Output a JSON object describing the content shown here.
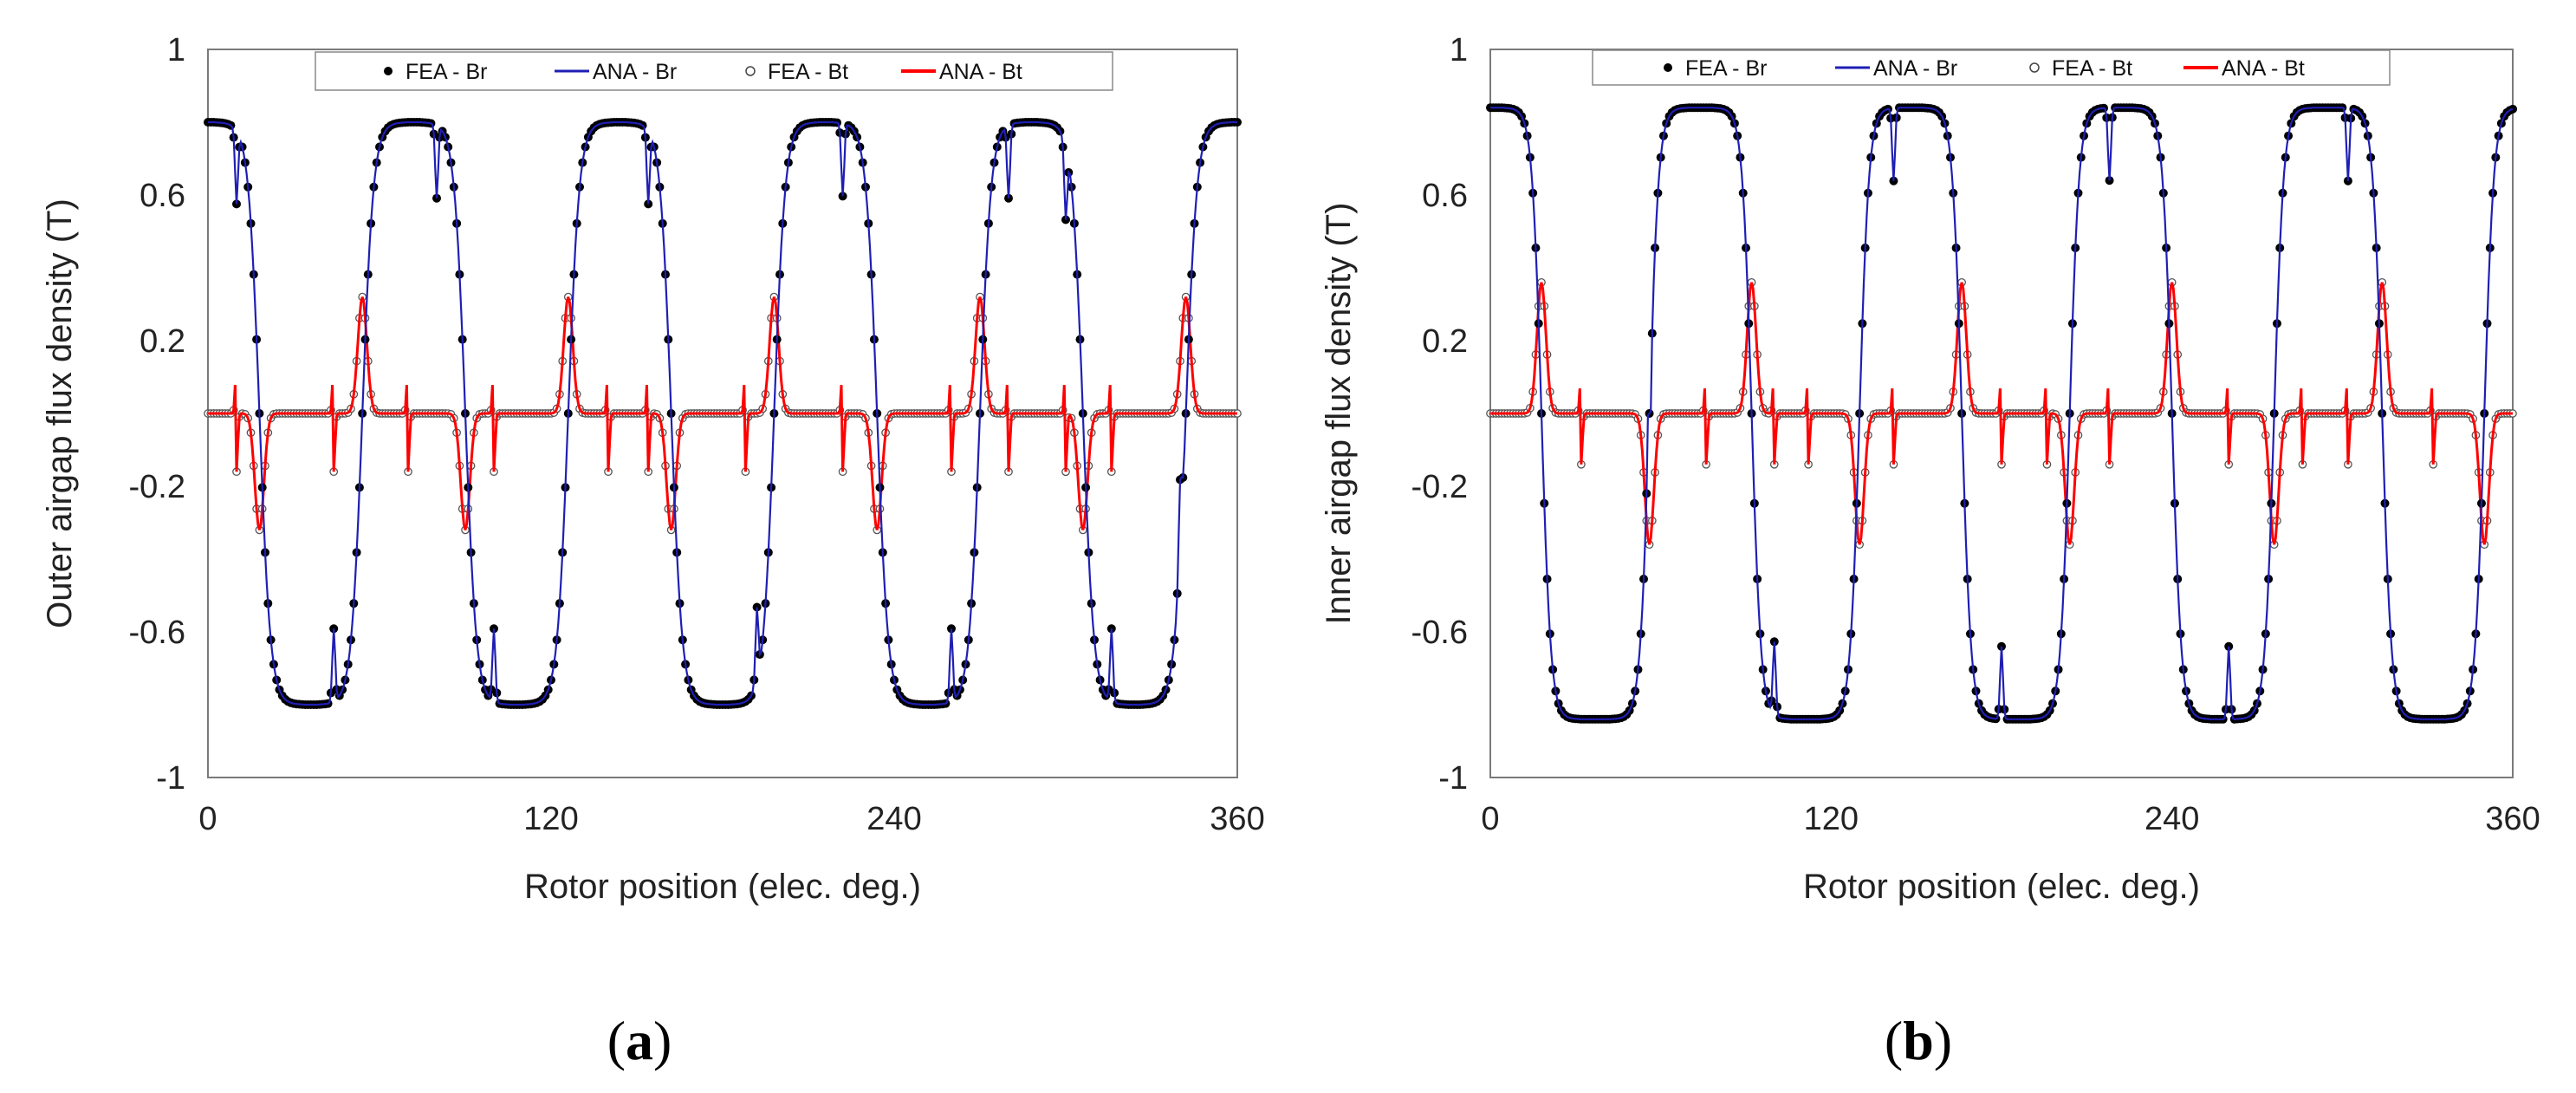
{
  "legend": {
    "fea_br": "FEA - Br",
    "ana_br": "ANA - Br",
    "fea_bt": "FEA - Bt",
    "ana_bt": "ANA - Bt"
  },
  "colors": {
    "fea_br": "#000000",
    "ana_br": "#1f1fb4",
    "fea_bt": "#555555",
    "ana_bt": "#ff0000"
  },
  "captions": {
    "a": "a",
    "b": "b"
  },
  "chart_data": [
    {
      "type": "scatter",
      "panel": "a",
      "xlabel": "Rotor position (elec. deg.)",
      "ylabel": "Outer airgap flux density (T)",
      "xlim": [
        0,
        360
      ],
      "ylim": [
        -1,
        1
      ],
      "xticks": [
        0,
        120,
        240,
        360
      ],
      "yticks": [
        1,
        0.6,
        0.2,
        -0.2,
        -0.6,
        -1
      ],
      "grid": false,
      "legend_position": "top",
      "br": {
        "amplitude": 0.8,
        "zero_crossings": [
          18,
          54,
          90,
          126,
          162,
          198,
          234,
          270,
          306,
          342
        ],
        "transition_width": 7,
        "slot_dips": [
          10,
          44,
          80,
          100,
          154,
          192,
          222,
          260,
          280,
          300,
          316,
          340
        ],
        "dip_depth": 0.2
      },
      "bt": {
        "peaks": [
          18,
          54,
          90,
          126,
          162,
          198,
          234,
          270,
          306,
          342
        ],
        "peak_signs": [
          -1,
          1,
          -1,
          1,
          -1,
          1,
          -1,
          1,
          -1,
          1
        ],
        "peak_amplitude": 0.32,
        "slot_spikes": [
          10,
          44,
          70,
          100,
          140,
          154,
          188,
          222,
          260,
          280,
          300,
          316
        ],
        "spike_amplitude": 0.16
      }
    },
    {
      "type": "scatter",
      "panel": "b",
      "xlabel": "Rotor position (elec. deg.)",
      "ylabel": "Inner airgap flux density (T)",
      "xlim": [
        0,
        360
      ],
      "ylim": [
        -1,
        1
      ],
      "xticks": [
        0,
        120,
        240,
        360
      ],
      "yticks": [
        1,
        0.6,
        0.2,
        -0.2,
        -0.6,
        -1
      ],
      "grid": false,
      "legend_position": "top",
      "br": {
        "amplitude": 0.84,
        "zero_crossings": [
          18,
          56,
          92,
          130,
          166,
          204,
          240,
          276,
          314,
          350
        ],
        "transition_width": 6,
        "slot_dips": [
          56,
          100,
          142,
          180,
          218,
          260,
          302
        ],
        "dip_depth": 0.2
      },
      "bt": {
        "peaks": [
          18,
          56,
          92,
          130,
          166,
          204,
          240,
          276,
          314,
          350
        ],
        "peak_signs": [
          1,
          -1,
          1,
          -1,
          1,
          -1,
          1,
          -1,
          1,
          -1
        ],
        "peak_amplitude": 0.36,
        "slot_spikes": [
          32,
          76,
          100,
          112,
          142,
          180,
          196,
          218,
          260,
          286,
          302,
          332
        ],
        "spike_amplitude": 0.14
      }
    }
  ]
}
